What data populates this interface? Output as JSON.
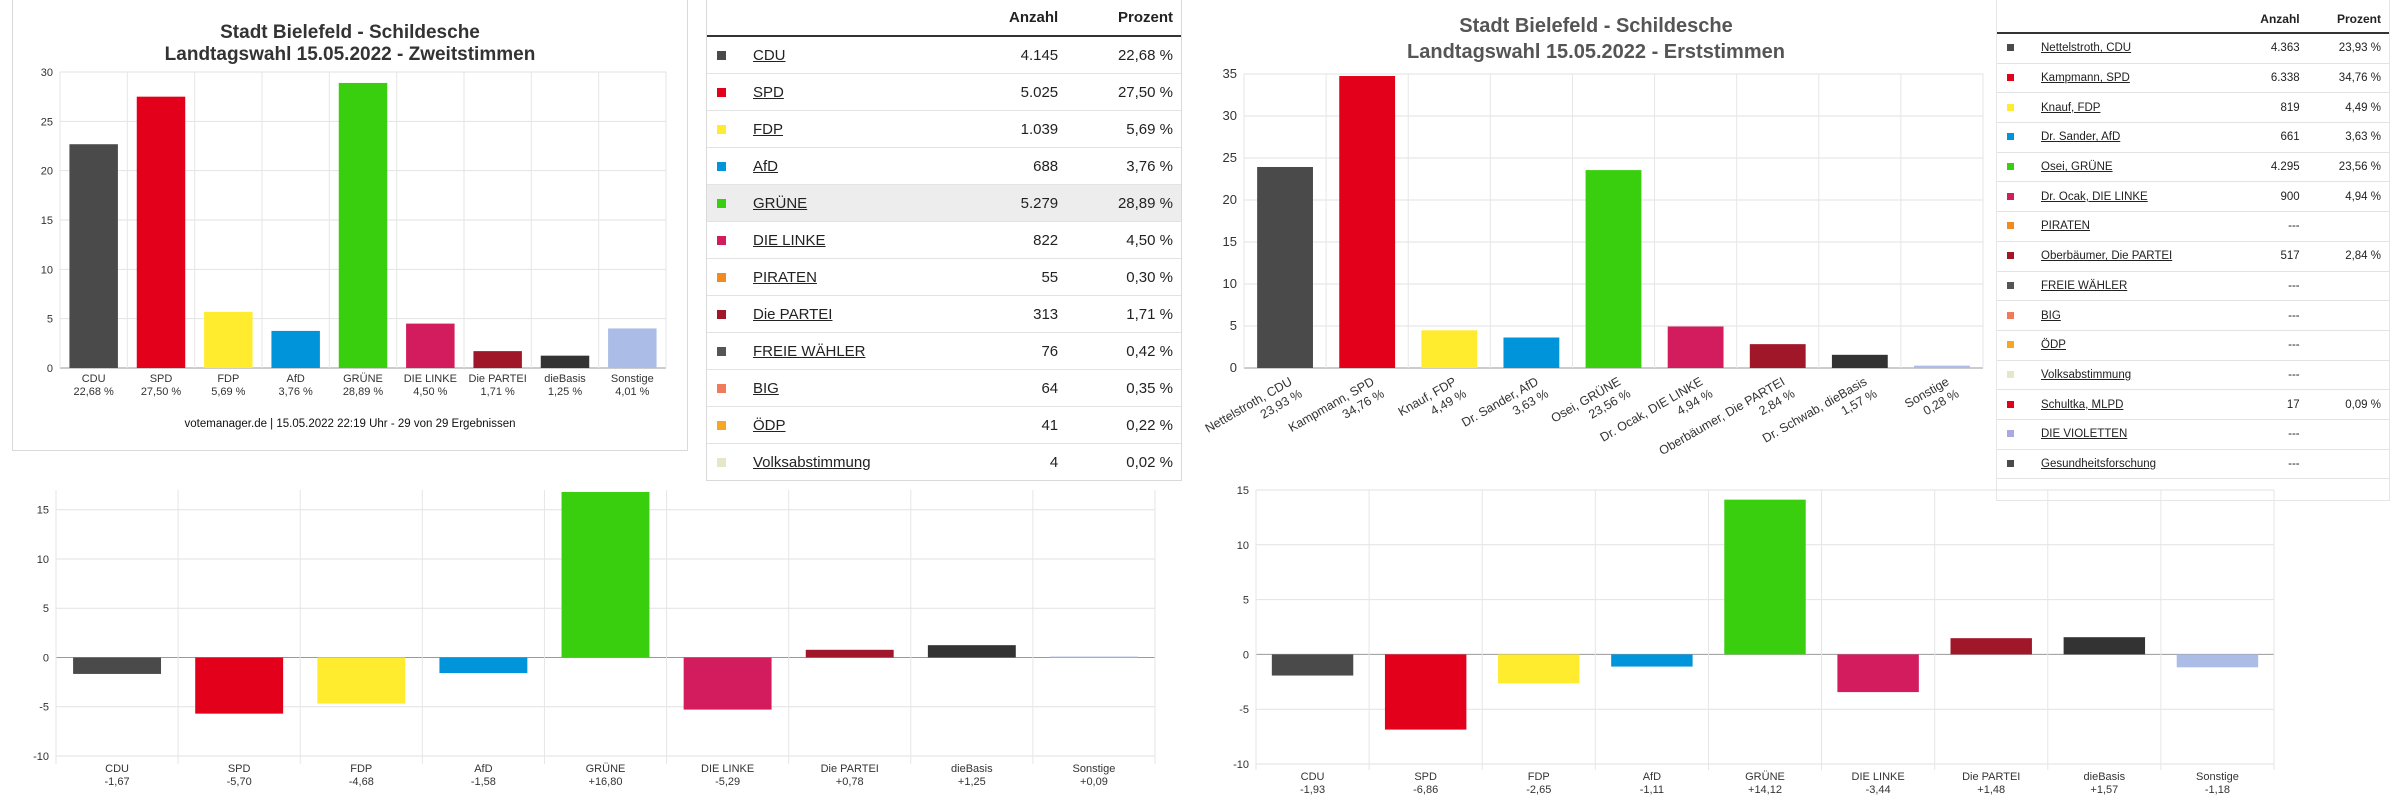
{
  "chart_data": [
    {
      "type": "bar",
      "title": "Stadt Bielefeld - Schildesche",
      "subtitle": "Landtagswahl 15.05.2022  - Zweitstimmen",
      "footer": "votemanager.de | 15.05.2022 22:19 Uhr - 29 von 29 Ergebnissen",
      "categories": [
        "CDU",
        "SPD",
        "FDP",
        "AfD",
        "GRÜNE",
        "DIE LINKE",
        "Die PARTEI",
        "dieBasis",
        "Sonstige"
      ],
      "value_labels": [
        "22,68 %",
        "27,50 %",
        "5,69 %",
        "3,76 %",
        "28,89 %",
        "4,50 %",
        "1,71 %",
        "1,25 %",
        "4,01 %"
      ],
      "values": [
        22.68,
        27.5,
        5.69,
        3.76,
        28.89,
        4.5,
        1.71,
        1.25,
        4.01
      ],
      "colors": [
        "#4a4a4a",
        "#e3001b",
        "#ffec2e",
        "#0094da",
        "#3acf0e",
        "#d21c5e",
        "#a1172a",
        "#333333",
        "#abbde6"
      ],
      "yticks": [
        0,
        5,
        10,
        15,
        20,
        25,
        30
      ],
      "ylim": [
        0,
        30
      ],
      "grid": true
    },
    {
      "type": "bar",
      "title": "Stadt Bielefeld - Schildesche",
      "subtitle": "Landtagswahl 15.05.2022  - Erststimmen",
      "categories": [
        "Nettelstroth, CDU",
        "Kampmann, SPD",
        "Knauf, FDP",
        "Dr. Sander, AfD",
        "Osei, GRÜNE",
        "Dr. Ocak, DIE LINKE",
        "Oberbäumer, Die PARTEI",
        "Dr. Schwab, dieBasis",
        "Sonstige"
      ],
      "value_labels": [
        "23,93 %",
        "34,76 %",
        "4,49 %",
        "3,63 %",
        "23,56 %",
        "4,94 %",
        "2,84 %",
        "1,57 %",
        "0,28 %"
      ],
      "values": [
        23.93,
        34.76,
        4.49,
        3.63,
        23.56,
        4.94,
        2.84,
        1.57,
        0.28
      ],
      "colors": [
        "#4a4a4a",
        "#e3001b",
        "#ffec2e",
        "#0094da",
        "#3acf0e",
        "#d21c5e",
        "#a1172a",
        "#333333",
        "#abbde6"
      ],
      "yticks": [
        0,
        5,
        10,
        15,
        20,
        25,
        30,
        35
      ],
      "ylim": [
        0,
        35
      ],
      "grid": true
    },
    {
      "type": "bar",
      "categories": [
        "CDU",
        "SPD",
        "FDP",
        "AfD",
        "GRÜNE",
        "DIE LINKE",
        "Die PARTEI",
        "dieBasis",
        "Sonstige"
      ],
      "value_labels": [
        "-1,67",
        "-5,70",
        "-4,68",
        "-1,58",
        "+16,80",
        "-5,29",
        "+0,78",
        "+1,25",
        "+0,09"
      ],
      "values": [
        -1.67,
        -5.7,
        -4.68,
        -1.58,
        16.8,
        -5.29,
        0.78,
        1.25,
        0.09
      ],
      "colors": [
        "#4a4a4a",
        "#e3001b",
        "#ffec2e",
        "#0094da",
        "#3acf0e",
        "#d21c5e",
        "#a1172a",
        "#333333",
        "#abbde6"
      ],
      "yticks": [
        -10,
        -5,
        0,
        5,
        10,
        15
      ],
      "ylim": [
        -10,
        17
      ],
      "grid": true
    },
    {
      "type": "bar",
      "categories": [
        "CDU",
        "SPD",
        "FDP",
        "AfD",
        "GRÜNE",
        "DIE LINKE",
        "Die PARTEI",
        "dieBasis",
        "Sonstige"
      ],
      "value_labels": [
        "-1,93",
        "-6,86",
        "-2,65",
        "-1,11",
        "+14,12",
        "-3,44",
        "+1,48",
        "+1,57",
        "-1,18"
      ],
      "values": [
        -1.93,
        -6.86,
        -2.65,
        -1.11,
        14.12,
        -3.44,
        1.48,
        1.57,
        -1.18
      ],
      "colors": [
        "#4a4a4a",
        "#e3001b",
        "#ffec2e",
        "#0094da",
        "#3acf0e",
        "#d21c5e",
        "#a1172a",
        "#333333",
        "#abbde6"
      ],
      "yticks": [
        -10,
        -5,
        0,
        5,
        10,
        15
      ],
      "ylim": [
        -10,
        15
      ],
      "grid": true
    }
  ],
  "table1": {
    "headers": [
      "Anzahl",
      "Prozent"
    ],
    "rows": [
      {
        "party": "CDU",
        "count": "4.145",
        "percent": "22,68 %",
        "color": "#4a4a4a"
      },
      {
        "party": "SPD",
        "count": "5.025",
        "percent": "27,50 %",
        "color": "#e3001b"
      },
      {
        "party": "FDP",
        "count": "1.039",
        "percent": "5,69 %",
        "color": "#ffec2e"
      },
      {
        "party": "AfD",
        "count": "688",
        "percent": "3,76 %",
        "color": "#0094da"
      },
      {
        "party": "GRÜNE",
        "count": "5.279",
        "percent": "28,89 %",
        "color": "#3acf0e"
      },
      {
        "party": "DIE LINKE",
        "count": "822",
        "percent": "4,50 %",
        "color": "#d21c5e"
      },
      {
        "party": "PIRATEN",
        "count": "55",
        "percent": "0,30 %",
        "color": "#f28a1f"
      },
      {
        "party": "Die PARTEI",
        "count": "313",
        "percent": "1,71 %",
        "color": "#a1172a"
      },
      {
        "party": "FREIE WÄHLER",
        "count": "76",
        "percent": "0,42 %",
        "color": "#555555"
      },
      {
        "party": "BIG",
        "count": "64",
        "percent": "0,35 %",
        "color": "#f07a5a"
      },
      {
        "party": "ÖDP",
        "count": "41",
        "percent": "0,22 %",
        "color": "#f5a623"
      },
      {
        "party": "Volksabstimmung",
        "count": "4",
        "percent": "0,02 %",
        "color": "#e6e6c8"
      }
    ]
  },
  "table2": {
    "headers": [
      "Anzahl",
      "Prozent"
    ],
    "rows": [
      {
        "party": "Nettelstroth, CDU",
        "count": "4.363",
        "percent": "23,93 %",
        "color": "#4a4a4a"
      },
      {
        "party": "Kampmann, SPD",
        "count": "6.338",
        "percent": "34,76 %",
        "color": "#e3001b"
      },
      {
        "party": "Knauf, FDP",
        "count": "819",
        "percent": "4,49 %",
        "color": "#ffec2e"
      },
      {
        "party": "Dr. Sander, AfD",
        "count": "661",
        "percent": "3,63 %",
        "color": "#0094da"
      },
      {
        "party": "Osei, GRÜNE",
        "count": "4.295",
        "percent": "23,56 %",
        "color": "#3acf0e"
      },
      {
        "party": "Dr. Ocak, DIE LINKE",
        "count": "900",
        "percent": "4,94 %",
        "color": "#d21c5e"
      },
      {
        "party": "PIRATEN",
        "count": "---",
        "percent": "",
        "color": "#f28a1f"
      },
      {
        "party": "Oberbäumer, Die PARTEI",
        "count": "517",
        "percent": "2,84 %",
        "color": "#a1172a"
      },
      {
        "party": "FREIE WÄHLER",
        "count": "---",
        "percent": "",
        "color": "#555555"
      },
      {
        "party": "BIG",
        "count": "---",
        "percent": "",
        "color": "#f07a5a"
      },
      {
        "party": "ÖDP",
        "count": "---",
        "percent": "",
        "color": "#f5a623"
      },
      {
        "party": "Volksabstimmung",
        "count": "---",
        "percent": "",
        "color": "#e6e6c8"
      },
      {
        "party": "Schultka, MLPD",
        "count": "17",
        "percent": "0,09 %",
        "color": "#e3001b"
      },
      {
        "party": "DIE VIOLETTEN",
        "count": "---",
        "percent": "",
        "color": "#a8a8e6"
      },
      {
        "party": "Gesundheitsforschung",
        "count": "---",
        "percent": "",
        "color": "#4a4a4a"
      }
    ]
  }
}
